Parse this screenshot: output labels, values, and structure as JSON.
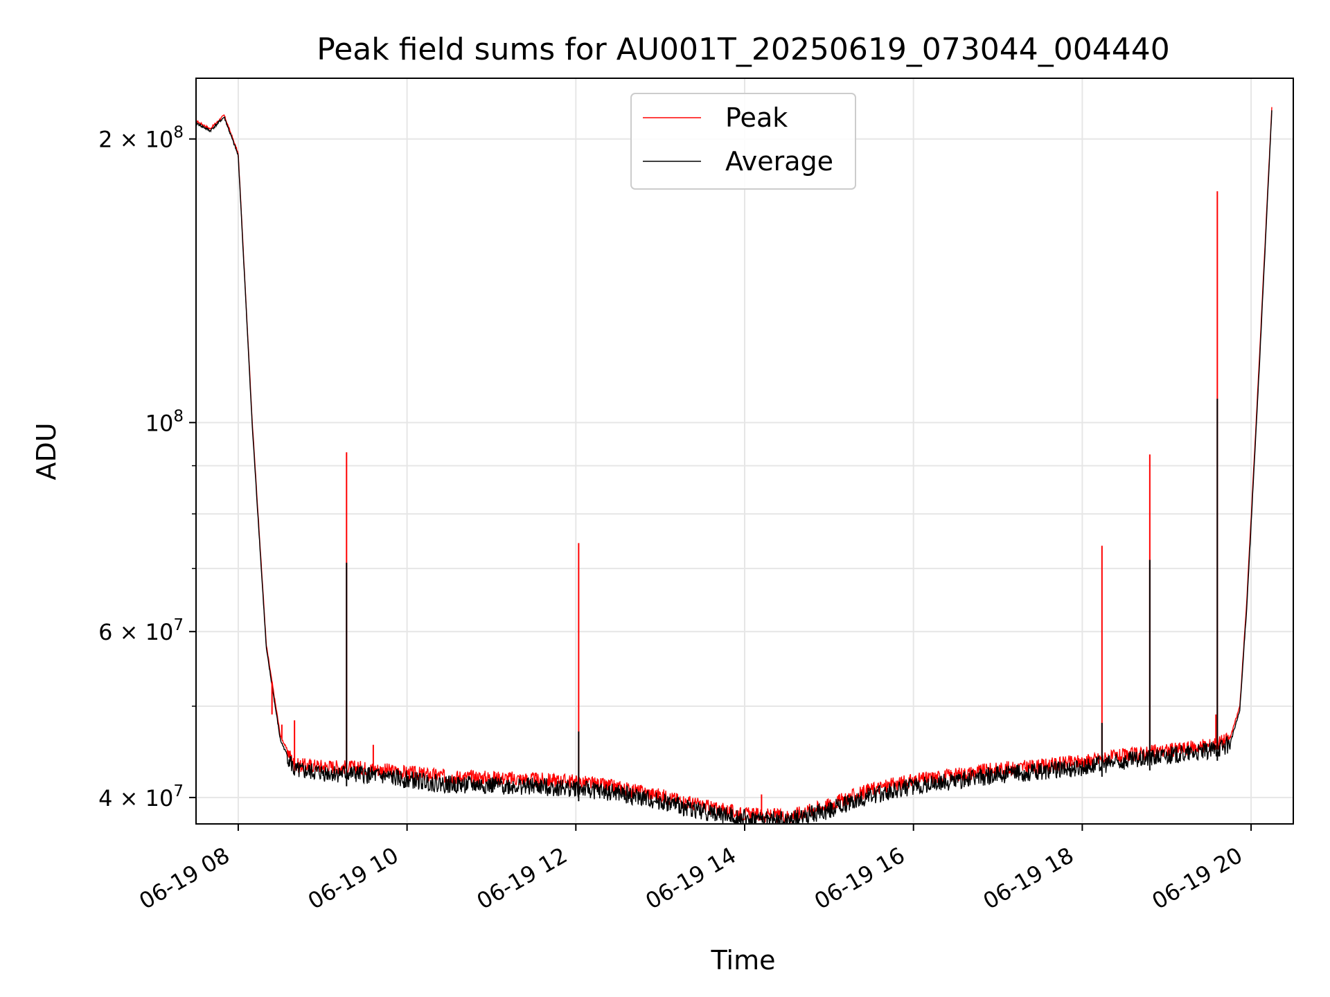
{
  "chart_data": {
    "type": "line",
    "title": "Peak field sums for AU001T_20250619_073044_004440",
    "xlabel": "Time",
    "ylabel": "ADU",
    "y_scale": "log",
    "ylim": [
      37500000,
      232000000
    ],
    "xlim": [
      "2025-06-19 07:30",
      "2025-06-19 20:30"
    ],
    "grid": true,
    "legend_position": "top-center",
    "x_tick_labels": [
      "06-19 08",
      "06-19 10",
      "06-19 12",
      "06-19 14",
      "06-19 16",
      "06-19 18",
      "06-19 20"
    ],
    "x_tick_values": [
      "2025-06-19 08:00",
      "2025-06-19 10:00",
      "2025-06-19 12:00",
      "2025-06-19 14:00",
      "2025-06-19 16:00",
      "2025-06-19 18:00",
      "2025-06-19 20:00"
    ],
    "y_major_ticks": [
      {
        "value": 40000000,
        "mantissa": "4",
        "exponent": "7"
      },
      {
        "value": 60000000,
        "mantissa": "6",
        "exponent": "7"
      },
      {
        "value": 100000000,
        "mantissa": "",
        "exponent": "8"
      },
      {
        "value": 200000000,
        "mantissa": "2",
        "exponent": "8"
      }
    ],
    "y_minor_ticks": [
      50000000,
      70000000,
      80000000,
      90000000
    ],
    "series": [
      {
        "name": "Peak",
        "color": "#ff0000",
        "x": [
          "2025-06-19 07:30",
          "2025-06-19 07:40",
          "2025-06-19 07:50",
          "2025-06-19 08:00",
          "2025-06-19 08:10",
          "2025-06-19 08:20",
          "2025-06-19 08:30",
          "2025-06-19 08:40",
          "2025-06-19 09:00",
          "2025-06-19 09:30",
          "2025-06-19 10:00",
          "2025-06-19 10:30",
          "2025-06-19 11:00",
          "2025-06-19 11:30",
          "2025-06-19 12:00",
          "2025-06-19 12:30",
          "2025-06-19 13:00",
          "2025-06-19 13:30",
          "2025-06-19 14:00",
          "2025-06-19 14:30",
          "2025-06-19 15:00",
          "2025-06-19 15:30",
          "2025-06-19 16:00",
          "2025-06-19 16:30",
          "2025-06-19 17:00",
          "2025-06-19 17:30",
          "2025-06-19 18:00",
          "2025-06-19 18:30",
          "2025-06-19 19:00",
          "2025-06-19 19:30",
          "2025-06-19 19:45",
          "2025-06-19 19:52",
          "2025-06-19 19:57",
          "2025-06-19 20:05",
          "2025-06-19 20:15"
        ],
        "values": [
          209000000,
          205000000,
          212000000,
          193000000,
          100000000,
          58000000,
          46500000,
          43300000,
          43200000,
          43000000,
          42500000,
          42100000,
          42000000,
          41800000,
          41600000,
          41000000,
          40200000,
          39200000,
          38400000,
          38200000,
          39300000,
          40800000,
          41700000,
          42300000,
          42900000,
          43200000,
          43700000,
          44300000,
          44900000,
          45400000,
          46200000,
          50000000,
          65000000,
          110000000,
          220000000
        ]
      },
      {
        "name": "Average",
        "color": "#000000",
        "x": [
          "2025-06-19 07:30",
          "2025-06-19 07:40",
          "2025-06-19 07:50",
          "2025-06-19 08:00",
          "2025-06-19 08:10",
          "2025-06-19 08:20",
          "2025-06-19 08:30",
          "2025-06-19 08:40",
          "2025-06-19 09:00",
          "2025-06-19 09:30",
          "2025-06-19 10:00",
          "2025-06-19 10:30",
          "2025-06-19 11:00",
          "2025-06-19 11:30",
          "2025-06-19 12:00",
          "2025-06-19 12:30",
          "2025-06-19 13:00",
          "2025-06-19 13:30",
          "2025-06-19 14:00",
          "2025-06-19 14:30",
          "2025-06-19 15:00",
          "2025-06-19 15:30",
          "2025-06-19 16:00",
          "2025-06-19 16:30",
          "2025-06-19 17:00",
          "2025-06-19 17:30",
          "2025-06-19 18:00",
          "2025-06-19 18:30",
          "2025-06-19 19:00",
          "2025-06-19 19:30",
          "2025-06-19 19:45",
          "2025-06-19 19:52",
          "2025-06-19 19:57",
          "2025-06-19 20:05",
          "2025-06-19 20:15"
        ],
        "values": [
          208000000,
          204000000,
          211000000,
          192000000,
          99000000,
          57500000,
          46000000,
          42700000,
          42500000,
          42300000,
          41800000,
          41300000,
          41200000,
          41100000,
          40900000,
          40400000,
          39600000,
          38700000,
          38000000,
          37800000,
          38800000,
          40200000,
          41100000,
          41700000,
          42300000,
          42600000,
          43100000,
          43700000,
          44300000,
          44800000,
          45600000,
          49500000,
          64000000,
          108000000,
          218000000
        ]
      }
    ],
    "peak_spikes": [
      {
        "x": "2025-06-19 08:24",
        "value": 49000000
      },
      {
        "x": "2025-06-19 08:31",
        "value": 47800000
      },
      {
        "x": "2025-06-19 08:40",
        "value": 48300000
      },
      {
        "x": "2025-06-19 09:17",
        "value": 93000000
      },
      {
        "x": "2025-06-19 09:36",
        "value": 45500000
      },
      {
        "x": "2025-06-19 12:02",
        "value": 74500000
      },
      {
        "x": "2025-06-19 14:12",
        "value": 40300000
      },
      {
        "x": "2025-06-19 18:14",
        "value": 74000000
      },
      {
        "x": "2025-06-19 18:48",
        "value": 92500000
      },
      {
        "x": "2025-06-19 19:35",
        "value": 49000000
      },
      {
        "x": "2025-06-19 19:36",
        "value": 176000000
      }
    ],
    "average_spikes": [
      {
        "x": "2025-06-19 09:17",
        "value": 71000000
      },
      {
        "x": "2025-06-19 12:02",
        "value": 47000000
      },
      {
        "x": "2025-06-19 18:14",
        "value": 48000000
      },
      {
        "x": "2025-06-19 18:48",
        "value": 71500000
      },
      {
        "x": "2025-06-19 19:36",
        "value": 106000000
      }
    ]
  }
}
